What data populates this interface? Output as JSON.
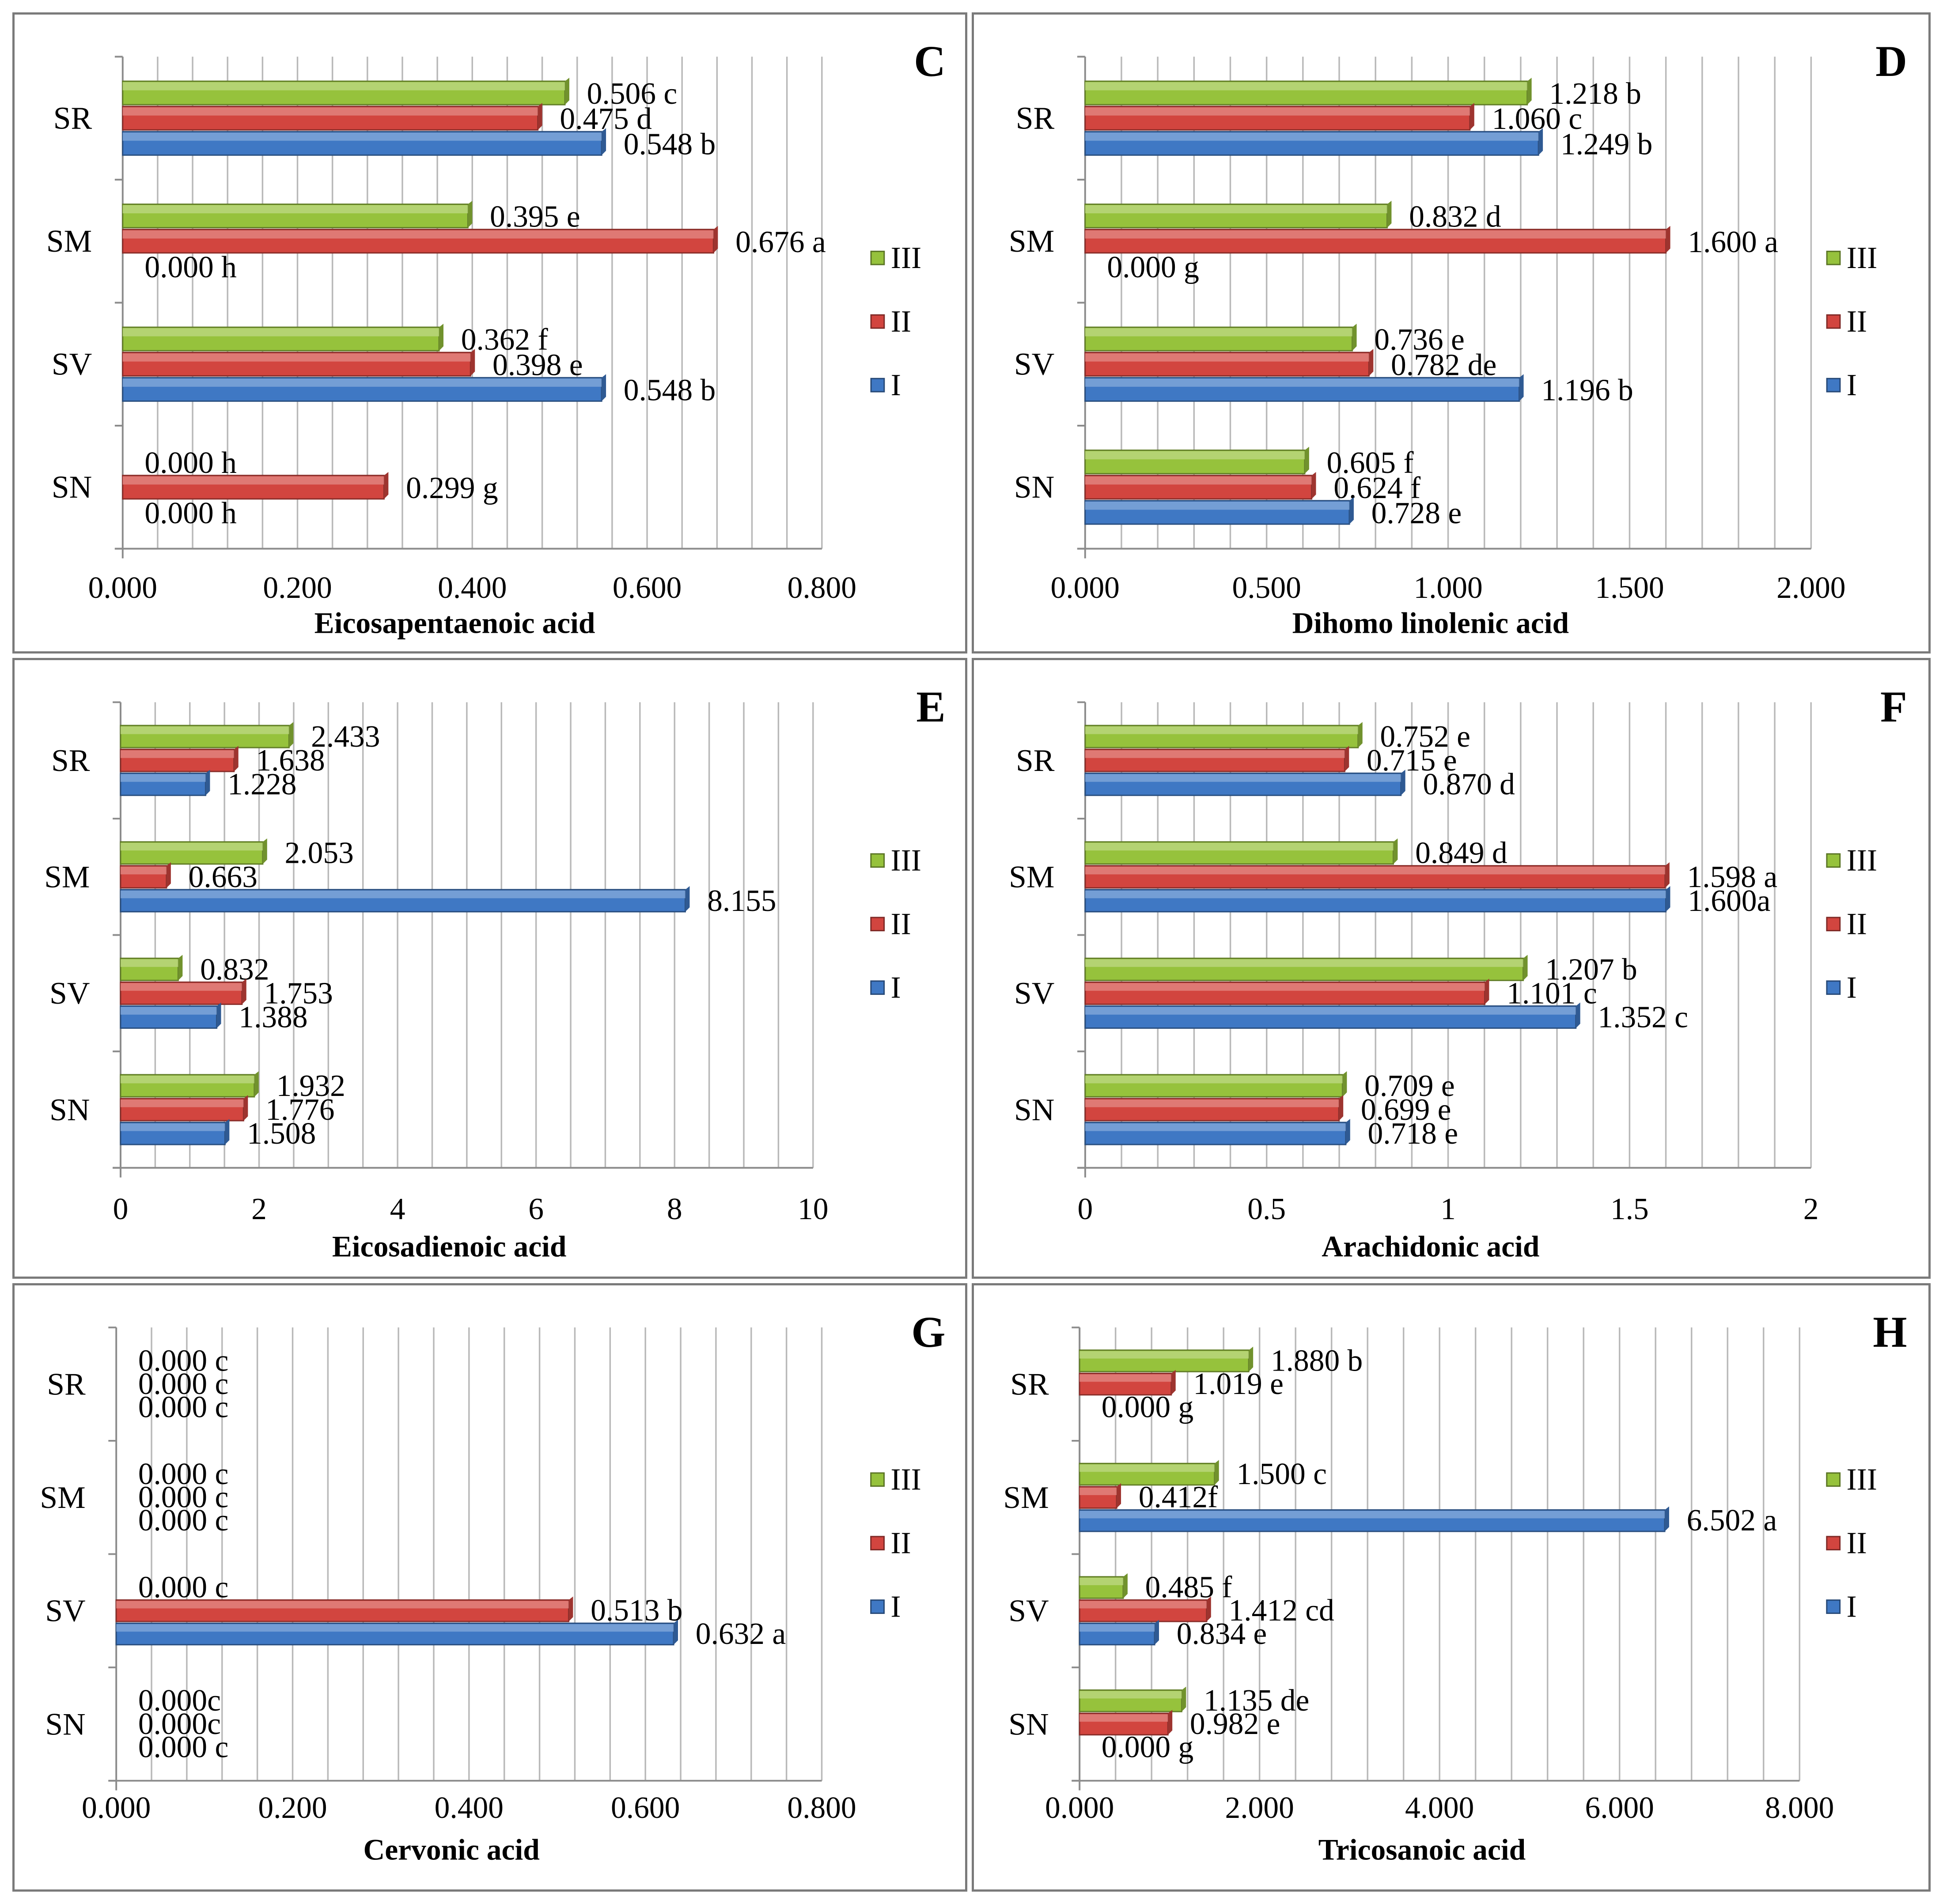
{
  "colors": {
    "I": "#3f78c4",
    "II": "#d2453f",
    "III": "#96c23c"
  },
  "legend": [
    "III",
    "II",
    "I"
  ],
  "chart_data": [
    {
      "type": "bar",
      "orientation": "horizontal",
      "panel": "C",
      "title": "Eicosapentaenoic acid",
      "categories": [
        "SN",
        "SV",
        "SM",
        "SR"
      ],
      "series": [
        {
          "name": "I",
          "values": [
            0.0,
            0.548,
            0.0,
            0.548
          ],
          "labels": [
            "0.000 h",
            "0.548 b",
            "0.000 h",
            "0.548 b"
          ]
        },
        {
          "name": "II",
          "values": [
            0.299,
            0.398,
            0.676,
            0.475
          ],
          "labels": [
            "0.299 g",
            "0.398 e",
            "0.676 a",
            "0.475 d"
          ]
        },
        {
          "name": "III",
          "values": [
            0.0,
            0.362,
            0.395,
            0.506
          ],
          "labels": [
            "0.000 h",
            "0.362 f",
            "0.395 e",
            "0.506 c"
          ]
        }
      ],
      "xlim": [
        0,
        0.8
      ],
      "xticks": [
        "0.000",
        "0.200",
        "0.400",
        "0.600",
        "0.800"
      ],
      "grid_step": 0.04
    },
    {
      "type": "bar",
      "orientation": "horizontal",
      "panel": "D",
      "title": "Dihomo linolenic acid",
      "categories": [
        "SN",
        "SV",
        "SM",
        "SR"
      ],
      "series": [
        {
          "name": "I",
          "values": [
            0.728,
            1.196,
            0.0,
            1.249
          ],
          "labels": [
            "0.728 e",
            "1.196 b",
            "0.000 g",
            "1.249 b"
          ]
        },
        {
          "name": "II",
          "values": [
            0.624,
            0.782,
            1.6,
            1.06
          ],
          "labels": [
            "0.624 f",
            "0.782 de",
            "1.600 a",
            "1.060 c"
          ]
        },
        {
          "name": "III",
          "values": [
            0.605,
            0.736,
            0.832,
            1.218
          ],
          "labels": [
            "0.605 f",
            "0.736 e",
            "0.832 d",
            "1.218 b"
          ]
        }
      ],
      "xlim": [
        0,
        2.0
      ],
      "xticks": [
        "0.000",
        "0.500",
        "1.000",
        "1.500",
        "2.000"
      ],
      "grid_step": 0.1
    },
    {
      "type": "bar",
      "orientation": "horizontal",
      "panel": "E",
      "title": "Eicosadienoic acid",
      "categories": [
        "SN",
        "SV",
        "SM",
        "SR"
      ],
      "series": [
        {
          "name": "I",
          "values": [
            1.508,
            1.388,
            8.155,
            1.228
          ],
          "labels": [
            "1.508",
            "1.388",
            "8.155",
            "1.228"
          ]
        },
        {
          "name": "II",
          "values": [
            1.776,
            1.753,
            0.663,
            1.638
          ],
          "labels": [
            "1.776",
            "1.753",
            "0.663",
            "1.638"
          ]
        },
        {
          "name": "III",
          "values": [
            1.932,
            0.832,
            2.053,
            2.433
          ],
          "labels": [
            "1.932",
            "0.832",
            "2.053",
            "2.433"
          ]
        }
      ],
      "xlim": [
        0,
        10
      ],
      "xticks": [
        "0",
        "2",
        "4",
        "6",
        "8",
        "10"
      ],
      "grid_step": 0.5
    },
    {
      "type": "bar",
      "orientation": "horizontal",
      "panel": "F",
      "title": "Arachidonic acid",
      "categories": [
        "SN",
        "SV",
        "SM",
        "SR"
      ],
      "series": [
        {
          "name": "I",
          "values": [
            0.718,
            1.352,
            1.6,
            0.87
          ],
          "labels": [
            "0.718 e",
            "1.352 c",
            "1.600a",
            "0.870 d"
          ]
        },
        {
          "name": "II",
          "values": [
            0.699,
            1.101,
            1.598,
            0.715
          ],
          "labels": [
            "0.699 e",
            "1.101 c",
            "1.598 a",
            "0.715 e"
          ]
        },
        {
          "name": "III",
          "values": [
            0.709,
            1.207,
            0.849,
            0.752
          ],
          "labels": [
            "0.709 e",
            "1.207 b",
            "0.849 d",
            "0.752 e"
          ]
        }
      ],
      "xlim": [
        0,
        2
      ],
      "xticks": [
        "0",
        "0.5",
        "1",
        "1.5",
        "2"
      ],
      "grid_step": 0.1
    },
    {
      "type": "bar",
      "orientation": "horizontal",
      "panel": "G",
      "title": "Cervonic acid",
      "categories": [
        "SN",
        "SV",
        "SM",
        "SR"
      ],
      "series": [
        {
          "name": "I",
          "values": [
            0.0,
            0.632,
            0.0,
            0.0
          ],
          "labels": [
            "0.000 c",
            "0.632 a",
            "0.000 c",
            "0.000 c"
          ]
        },
        {
          "name": "II",
          "values": [
            0.0,
            0.513,
            0.0,
            0.0
          ],
          "labels": [
            "0.000c",
            "0.513 b",
            "0.000 c",
            "0.000 c"
          ]
        },
        {
          "name": "III",
          "values": [
            0.0,
            0.0,
            0.0,
            0.0
          ],
          "labels": [
            "0.000c",
            "0.000 c",
            "0.000 c",
            "0.000 c"
          ]
        }
      ],
      "xlim": [
        0,
        0.8
      ],
      "xticks": [
        "0.000",
        "0.200",
        "0.400",
        "0.600",
        "0.800"
      ],
      "grid_step": 0.04
    },
    {
      "type": "bar",
      "orientation": "horizontal",
      "panel": "H",
      "title": "Tricosanoic acid",
      "categories": [
        "SN",
        "SV",
        "SM",
        "SR"
      ],
      "series": [
        {
          "name": "I",
          "values": [
            0.0,
            0.834,
            6.502,
            0.0
          ],
          "labels": [
            "0.000 g",
            "0.834 e",
            "6.502 a",
            "0.000 g"
          ]
        },
        {
          "name": "II",
          "values": [
            0.982,
            1.412,
            0.412,
            1.019
          ],
          "labels": [
            "0.982 e",
            "1.412 cd",
            "0.412f",
            "1.019 e"
          ]
        },
        {
          "name": "III",
          "values": [
            1.135,
            0.485,
            1.5,
            1.88
          ],
          "labels": [
            "1.135 de",
            "0.485 f",
            "1.500 c",
            "1.880 b"
          ]
        }
      ],
      "xlim": [
        0,
        8
      ],
      "xticks": [
        "0.000",
        "2.000",
        "4.000",
        "6.000",
        "8.000"
      ],
      "grid_step": 0.4
    }
  ]
}
